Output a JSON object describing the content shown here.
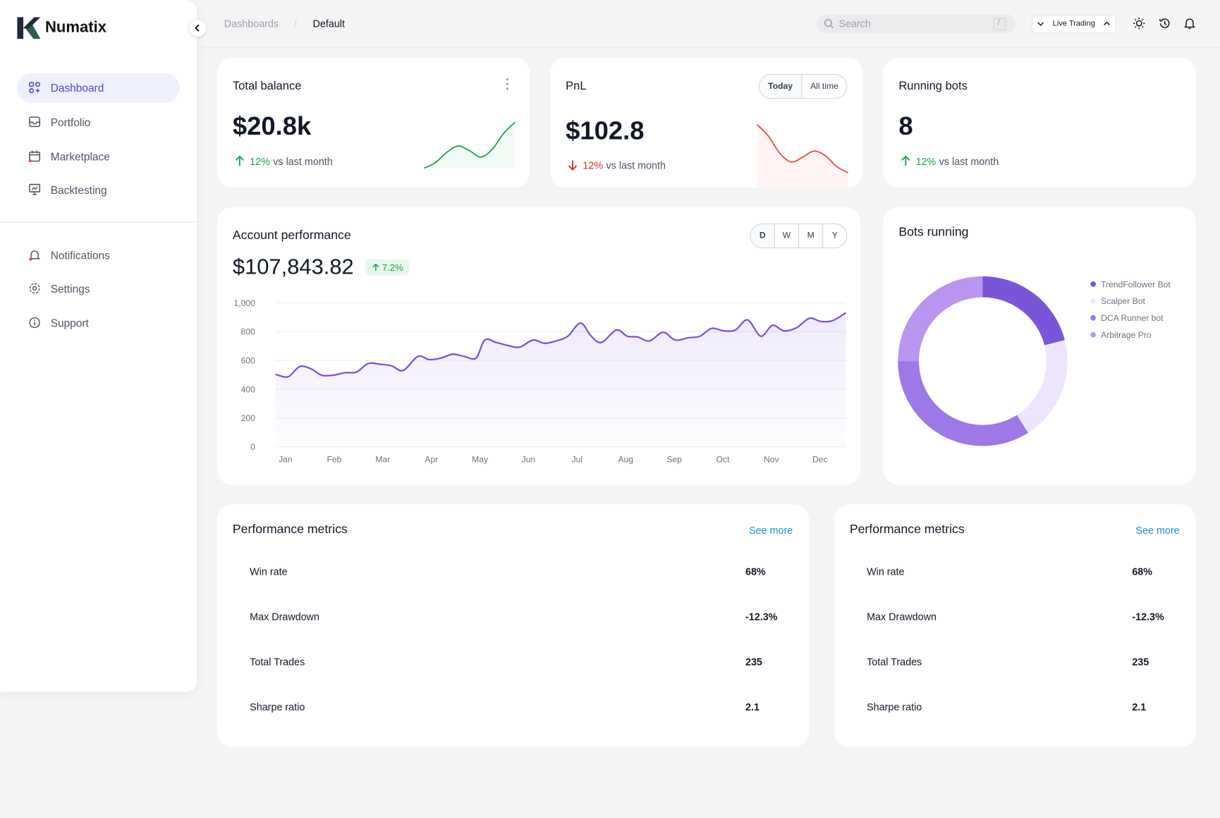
{
  "sidebar": {
    "brand": "Numatix",
    "nav": [
      "Dashboard",
      "Portfolio",
      "Marketplace",
      "Backtesting"
    ],
    "nav2": [
      "Notifications",
      "Settings",
      "Support"
    ]
  },
  "header": {
    "breadcrumb": [
      "Dashboards",
      "/",
      "Default"
    ],
    "search": "Search",
    "search_key": "/",
    "mode": "Live Trading"
  },
  "cards": [
    {
      "title": "Total balance",
      "value": "$20.8k",
      "change": "12%",
      "note": "vs last month"
    },
    {
      "title": "PnL",
      "value": "$102.8",
      "change": "12%",
      "note": "vs last month",
      "toggle": [
        "Today",
        "All time"
      ]
    },
    {
      "title": "Running bots",
      "value": "8",
      "change": "12%",
      "note": "vs last month"
    }
  ],
  "performance": {
    "value": "$107,843.82",
    "change": "7.2%",
    "periods": [
      "D",
      "W",
      "M",
      "Y"
    ]
  },
  "chart_data": [
    {
      "type": "line",
      "title": "Account performance",
      "color": "#7c4ddb",
      "x": [
        -0.21,
        0.05,
        0.29,
        0.53,
        0.74,
        0.98,
        1.22,
        1.46,
        1.7,
        1.94,
        2.18,
        2.42,
        2.72,
        2.96,
        3.2,
        3.44,
        3.68,
        3.92,
        4.1,
        4.34,
        4.58,
        4.82,
        5.09,
        5.33,
        5.57,
        5.81,
        6.07,
        6.29,
        6.5,
        6.81,
        7.03,
        7.25,
        7.49,
        7.77,
        8.02,
        8.29,
        8.53,
        8.77,
        9.02,
        9.26,
        9.51,
        9.78,
        10.02,
        10.26,
        10.52,
        10.78,
        11.02,
        11.26,
        11.53
      ],
      "values": [
        503,
        486,
        557,
        540,
        497,
        497,
        514,
        519,
        578,
        573,
        562,
        530,
        627,
        605,
        616,
        643,
        627,
        616,
        741,
        724,
        703,
        692,
        741,
        719,
        735,
        768,
        859,
        768,
        724,
        811,
        768,
        762,
        735,
        795,
        741,
        757,
        768,
        822,
        805,
        811,
        881,
        768,
        843,
        805,
        827,
        892,
        870,
        876,
        930
      ],
      "xlim": [
        -0.21,
        11.53
      ],
      "xticks": [
        {
          "value": 0,
          "label": "Jan"
        },
        {
          "value": 1,
          "label": "Feb"
        },
        {
          "value": 2,
          "label": "Mar"
        },
        {
          "value": 3,
          "label": "Apr"
        },
        {
          "value": 4,
          "label": "May"
        },
        {
          "value": 5,
          "label": "Jun"
        },
        {
          "value": 6,
          "label": "Jul"
        },
        {
          "value": 7,
          "label": "Aug"
        },
        {
          "value": 8,
          "label": "Sep"
        },
        {
          "value": 9,
          "label": "Oct"
        },
        {
          "value": 10,
          "label": "Nov"
        },
        {
          "value": 11,
          "label": "Dec"
        }
      ],
      "ylim": [
        0,
        1000
      ],
      "yticks": [
        0,
        200,
        400,
        600,
        800,
        {
          "value": 1000,
          "label": "1,000"
        }
      ],
      "grid": true
    },
    {
      "type": "pie",
      "title": "Bots running",
      "categories": [
        "TrendFollower Bot",
        "Scalper Bot",
        "DCA Runner bot",
        "Arbitrage Pro"
      ],
      "values": [
        21,
        20,
        34,
        25
      ],
      "colors": [
        "#7b55d8",
        "#ece5fb",
        "#9d78e6",
        "#b996ef"
      ],
      "donut": true
    },
    {
      "type": "line",
      "values": [
        2,
        9,
        22,
        30,
        24,
        16,
        26,
        46,
        60
      ],
      "color": "#16a34a"
    },
    {
      "type": "line",
      "values": [
        62,
        47,
        25,
        14,
        20,
        28,
        22,
        8,
        0
      ],
      "color": "#ef4444"
    }
  ],
  "metrics": [
    {
      "title": "Performance metrics",
      "link": "See more",
      "rows": [
        [
          "Win rate",
          "68%"
        ],
        [
          "Max Drawdown",
          "-12.3%"
        ],
        [
          "Total Trades",
          "235"
        ],
        [
          "Sharpe ratio",
          "2.1"
        ]
      ]
    },
    {
      "title": "Performance metrics",
      "link": "See more",
      "rows": [
        [
          "Win rate",
          "68%"
        ],
        [
          "Max Drawdown",
          "-12.3%"
        ],
        [
          "Total Trades",
          "235"
        ],
        [
          "Sharpe ratio",
          "2.1"
        ]
      ]
    }
  ]
}
